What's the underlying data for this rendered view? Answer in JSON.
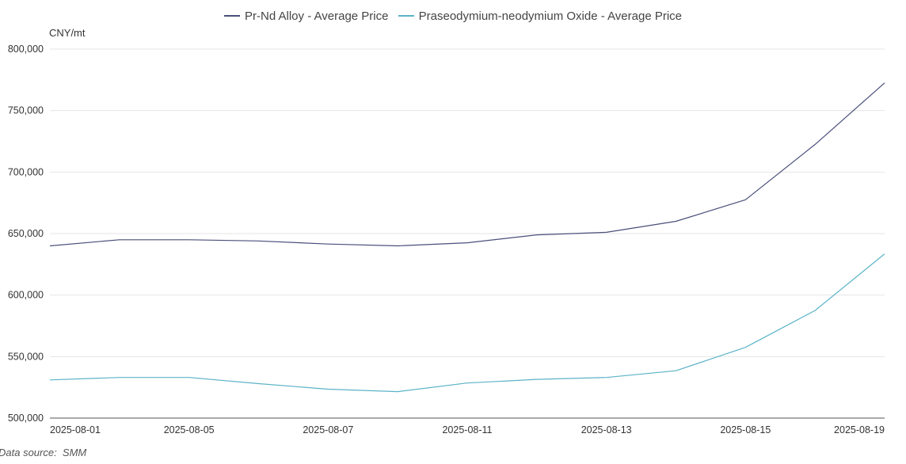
{
  "legend": {
    "items": [
      {
        "label": "Pr-Nd Alloy - Average Price",
        "color": "#4a4f7a"
      },
      {
        "label": "Praseodymium-neodymium Oxide - Average Price",
        "color": "#5bb3c8"
      }
    ]
  },
  "unit_label": "CNY/mt",
  "source_text": "Data source:  SMM",
  "chart_data": {
    "type": "line",
    "x": [
      "2025-08-01",
      "2025-08-04",
      "2025-08-05",
      "2025-08-06",
      "2025-08-07",
      "2025-08-08",
      "2025-08-11",
      "2025-08-12",
      "2025-08-13",
      "2025-08-14",
      "2025-08-15",
      "2025-08-18",
      "2025-08-19"
    ],
    "xticks": [
      "2025-08-01",
      "2025-08-05",
      "2025-08-07",
      "2025-08-11",
      "2025-08-13",
      "2025-08-15",
      "2025-08-19"
    ],
    "series": [
      {
        "name": "Pr-Nd Alloy - Average Price",
        "color": "#4a4f7a",
        "values": [
          640000,
          645000,
          645000,
          644000,
          641500,
          640000,
          642500,
          649000,
          651000,
          660000,
          677500,
          722500,
          772500
        ]
      },
      {
        "name": "Praseodymium-neodymium Oxide - Average Price",
        "color": "#5bb3c8",
        "values": [
          531000,
          533000,
          533000,
          528000,
          523500,
          521500,
          528500,
          531500,
          533000,
          538500,
          557500,
          587500,
          633500
        ]
      }
    ],
    "ylabel": "CNY/mt",
    "ylim": [
      500000,
      800000
    ],
    "yticks": [
      500000,
      550000,
      600000,
      650000,
      700000,
      750000,
      800000
    ],
    "yticklabels": [
      "500,000",
      "550,000",
      "600,000",
      "650,000",
      "700,000",
      "750,000",
      "800,000"
    ],
    "grid": true,
    "legend_position": "top-center"
  }
}
